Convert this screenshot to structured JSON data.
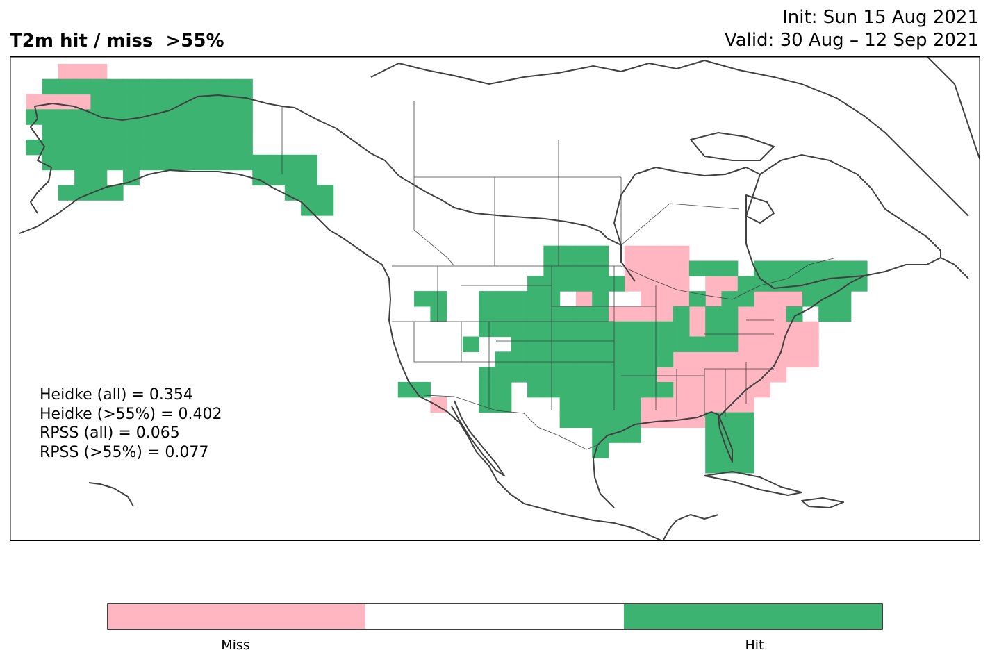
{
  "header": {
    "title": "T2m hit / miss  >55%",
    "init": "Init: Sun 15 Aug 2021",
    "valid": "Valid: 30 Aug – 12 Sep 2021"
  },
  "stats": [
    "Heidke (all) = 0.354",
    "Heidke (>55%) = 0.402",
    "RPSS (all) = 0.065",
    "RPSS (>55%) = 0.077"
  ],
  "legend": {
    "categories": [
      "Miss",
      "",
      "Hit"
    ],
    "colors": {
      "miss": "#ffb6c1",
      "neutral": "#ffffff",
      "hit": "#3cb371"
    }
  },
  "map": {
    "projection": "PlateCarree",
    "lon_range": [
      -171,
      -51
    ],
    "lat_range": [
      10,
      74
    ],
    "grid_deg": 2,
    "hit_cells": [
      [
        -166,
        70
      ],
      [
        -164,
        70
      ],
      [
        -162,
        70
      ],
      [
        -160,
        70
      ],
      [
        -158,
        70
      ],
      [
        -156,
        70
      ],
      [
        -154,
        70
      ],
      [
        -152,
        70
      ],
      [
        -150,
        70
      ],
      [
        -148,
        70
      ],
      [
        -146,
        70
      ],
      [
        -144,
        70
      ],
      [
        -142,
        70
      ],
      [
        -160,
        68
      ],
      [
        -158,
        68
      ],
      [
        -156,
        68
      ],
      [
        -154,
        68
      ],
      [
        -152,
        68
      ],
      [
        -150,
        68
      ],
      [
        -148,
        68
      ],
      [
        -146,
        68
      ],
      [
        -144,
        68
      ],
      [
        -142,
        68
      ],
      [
        -168,
        66
      ],
      [
        -166,
        66
      ],
      [
        -164,
        66
      ],
      [
        -162,
        66
      ],
      [
        -160,
        66
      ],
      [
        -158,
        66
      ],
      [
        -156,
        66
      ],
      [
        -154,
        66
      ],
      [
        -152,
        66
      ],
      [
        -150,
        66
      ],
      [
        -148,
        66
      ],
      [
        -146,
        66
      ],
      [
        -144,
        66
      ],
      [
        -142,
        66
      ],
      [
        -166,
        64
      ],
      [
        -164,
        64
      ],
      [
        -162,
        64
      ],
      [
        -160,
        64
      ],
      [
        -158,
        64
      ],
      [
        -156,
        64
      ],
      [
        -154,
        64
      ],
      [
        -152,
        64
      ],
      [
        -150,
        64
      ],
      [
        -148,
        64
      ],
      [
        -146,
        64
      ],
      [
        -144,
        64
      ],
      [
        -142,
        64
      ],
      [
        -168,
        62
      ],
      [
        -166,
        62
      ],
      [
        -164,
        62
      ],
      [
        -162,
        62
      ],
      [
        -160,
        62
      ],
      [
        -158,
        62
      ],
      [
        -156,
        62
      ],
      [
        -154,
        62
      ],
      [
        -152,
        62
      ],
      [
        -150,
        62
      ],
      [
        -148,
        62
      ],
      [
        -146,
        62
      ],
      [
        -144,
        62
      ],
      [
        -142,
        62
      ],
      [
        -166,
        60
      ],
      [
        -164,
        60
      ],
      [
        -162,
        60
      ],
      [
        -160,
        60
      ],
      [
        -158,
        60
      ],
      [
        -156,
        60
      ],
      [
        -154,
        60
      ],
      [
        -152,
        60
      ],
      [
        -150,
        60
      ],
      [
        -148,
        60
      ],
      [
        -146,
        60
      ],
      [
        -144,
        60
      ],
      [
        -142,
        60
      ],
      [
        -162,
        58
      ],
      [
        -160,
        58
      ],
      [
        -156,
        58
      ],
      [
        -164,
        56
      ],
      [
        -162,
        56
      ],
      [
        -160,
        56
      ],
      [
        -158,
        56
      ],
      [
        -140,
        60
      ],
      [
        -138,
        60
      ],
      [
        -136,
        60
      ],
      [
        -134,
        60
      ],
      [
        -140,
        58
      ],
      [
        -138,
        58
      ],
      [
        -136,
        58
      ],
      [
        -134,
        58
      ],
      [
        -136,
        56
      ],
      [
        -134,
        56
      ],
      [
        -132,
        56
      ],
      [
        -134,
        54
      ],
      [
        -132,
        54
      ],
      [
        -104,
        48
      ],
      [
        -102,
        48
      ],
      [
        -100,
        48
      ],
      [
        -98,
        48
      ],
      [
        -104,
        46
      ],
      [
        -102,
        46
      ],
      [
        -100,
        46
      ],
      [
        -98,
        46
      ],
      [
        -86,
        46
      ],
      [
        -84,
        46
      ],
      [
        -82,
        46
      ],
      [
        -106,
        44
      ],
      [
        -104,
        44
      ],
      [
        -102,
        44
      ],
      [
        -100,
        44
      ],
      [
        -98,
        44
      ],
      [
        -96,
        44
      ],
      [
        -112,
        42
      ],
      [
        -110,
        42
      ],
      [
        -108,
        42
      ],
      [
        -106,
        42
      ],
      [
        -104,
        42
      ],
      [
        -98,
        42
      ],
      [
        -112,
        40
      ],
      [
        -110,
        40
      ],
      [
        -108,
        40
      ],
      [
        -106,
        40
      ],
      [
        -104,
        40
      ],
      [
        -102,
        40
      ],
      [
        -100,
        40
      ],
      [
        -98,
        40
      ],
      [
        -112,
        38
      ],
      [
        -110,
        38
      ],
      [
        -108,
        38
      ],
      [
        -106,
        38
      ],
      [
        -104,
        38
      ],
      [
        -102,
        38
      ],
      [
        -100,
        38
      ],
      [
        -98,
        38
      ],
      [
        -96,
        38
      ],
      [
        -94,
        38
      ],
      [
        -92,
        38
      ],
      [
        -90,
        38
      ],
      [
        -114,
        36
      ],
      [
        -108,
        36
      ],
      [
        -106,
        36
      ],
      [
        -104,
        36
      ],
      [
        -102,
        36
      ],
      [
        -100,
        36
      ],
      [
        -98,
        36
      ],
      [
        -96,
        36
      ],
      [
        -94,
        36
      ],
      [
        -92,
        36
      ],
      [
        -90,
        36
      ],
      [
        -110,
        34
      ],
      [
        -108,
        34
      ],
      [
        -106,
        34
      ],
      [
        -104,
        34
      ],
      [
        -102,
        34
      ],
      [
        -100,
        34
      ],
      [
        -98,
        34
      ],
      [
        -96,
        34
      ],
      [
        -94,
        34
      ],
      [
        -92,
        34
      ],
      [
        -90,
        34
      ],
      [
        -112,
        32
      ],
      [
        -110,
        32
      ],
      [
        -108,
        32
      ],
      [
        -106,
        32
      ],
      [
        -104,
        32
      ],
      [
        -102,
        32
      ],
      [
        -100,
        32
      ],
      [
        -98,
        32
      ],
      [
        -96,
        32
      ],
      [
        -94,
        32
      ],
      [
        -92,
        32
      ],
      [
        -112,
        30
      ],
      [
        -110,
        30
      ],
      [
        -106,
        30
      ],
      [
        -104,
        30
      ],
      [
        -102,
        30
      ],
      [
        -100,
        30
      ],
      [
        -98,
        30
      ],
      [
        -96,
        30
      ],
      [
        -94,
        30
      ],
      [
        -92,
        30
      ],
      [
        -90,
        30
      ],
      [
        -112,
        28
      ],
      [
        -110,
        28
      ],
      [
        -102,
        28
      ],
      [
        -100,
        28
      ],
      [
        -98,
        28
      ],
      [
        -96,
        28
      ],
      [
        -94,
        28
      ],
      [
        -102,
        26
      ],
      [
        -100,
        26
      ],
      [
        -98,
        26
      ],
      [
        -96,
        26
      ],
      [
        -94,
        26
      ],
      [
        -84,
        26
      ],
      [
        -82,
        26
      ],
      [
        -80,
        26
      ],
      [
        -98,
        24
      ],
      [
        -96,
        24
      ],
      [
        -94,
        24
      ],
      [
        -84,
        24
      ],
      [
        -82,
        24
      ],
      [
        -80,
        24
      ],
      [
        -98,
        22
      ],
      [
        -84,
        22
      ],
      [
        -82,
        22
      ],
      [
        -80,
        22
      ],
      [
        -84,
        20
      ],
      [
        -82,
        20
      ],
      [
        -80,
        20
      ],
      [
        -120,
        42
      ],
      [
        -118,
        42
      ],
      [
        -118,
        40
      ],
      [
        -122,
        30
      ],
      [
        -120,
        30
      ],
      [
        -78,
        46
      ],
      [
        -76,
        46
      ],
      [
        -74,
        46
      ],
      [
        -72,
        46
      ],
      [
        -70,
        46
      ],
      [
        -68,
        46
      ],
      [
        -66,
        46
      ],
      [
        -80,
        44
      ],
      [
        -78,
        44
      ],
      [
        -76,
        44
      ],
      [
        -74,
        44
      ],
      [
        -72,
        44
      ],
      [
        -70,
        44
      ],
      [
        -68,
        44
      ],
      [
        -66,
        44
      ],
      [
        -86,
        42
      ],
      [
        -82,
        42
      ],
      [
        -80,
        42
      ],
      [
        -72,
        42
      ],
      [
        -70,
        42
      ],
      [
        -68,
        42
      ],
      [
        -88,
        40
      ],
      [
        -84,
        40
      ],
      [
        -82,
        40
      ],
      [
        -74,
        40
      ],
      [
        -70,
        40
      ],
      [
        -68,
        40
      ],
      [
        -88,
        38
      ],
      [
        -84,
        38
      ],
      [
        -82,
        38
      ],
      [
        -88,
        36
      ],
      [
        -86,
        36
      ],
      [
        -84,
        36
      ],
      [
        -82,
        36
      ]
    ],
    "miss_cells": [
      [
        -164,
        72
      ],
      [
        -162,
        72
      ],
      [
        -160,
        72
      ],
      [
        -166,
        70
      ],
      [
        -164,
        70
      ],
      [
        -162,
        70
      ],
      [
        -168,
        68
      ],
      [
        -166,
        68
      ],
      [
        -164,
        68
      ],
      [
        -162,
        68
      ],
      [
        -156,
        58
      ],
      [
        -94,
        48
      ],
      [
        -92,
        48
      ],
      [
        -90,
        48
      ],
      [
        -88,
        48
      ],
      [
        -94,
        46
      ],
      [
        -92,
        46
      ],
      [
        -90,
        46
      ],
      [
        -88,
        46
      ],
      [
        -94,
        44
      ],
      [
        -92,
        44
      ],
      [
        -90,
        44
      ],
      [
        -88,
        44
      ],
      [
        -84,
        44
      ],
      [
        -82,
        44
      ],
      [
        -80,
        44
      ],
      [
        -100,
        42
      ],
      [
        -92,
        42
      ],
      [
        -90,
        42
      ],
      [
        -88,
        42
      ],
      [
        -86,
        42
      ],
      [
        -84,
        42
      ],
      [
        -82,
        42
      ],
      [
        -80,
        42
      ],
      [
        -78,
        42
      ],
      [
        -76,
        42
      ],
      [
        -74,
        42
      ],
      [
        -96,
        40
      ],
      [
        -94,
        40
      ],
      [
        -92,
        40
      ],
      [
        -90,
        40
      ],
      [
        -86,
        40
      ],
      [
        -80,
        40
      ],
      [
        -78,
        40
      ],
      [
        -76,
        40
      ],
      [
        -86,
        38
      ],
      [
        -80,
        38
      ],
      [
        -78,
        38
      ],
      [
        -76,
        38
      ],
      [
        -74,
        38
      ],
      [
        -72,
        38
      ],
      [
        -82,
        36
      ],
      [
        -80,
        36
      ],
      [
        -78,
        36
      ],
      [
        -76,
        36
      ],
      [
        -74,
        36
      ],
      [
        -72,
        36
      ],
      [
        -88,
        34
      ],
      [
        -86,
        34
      ],
      [
        -84,
        34
      ],
      [
        -82,
        34
      ],
      [
        -80,
        34
      ],
      [
        -78,
        34
      ],
      [
        -76,
        34
      ],
      [
        -74,
        34
      ],
      [
        -72,
        34
      ],
      [
        -90,
        32
      ],
      [
        -88,
        32
      ],
      [
        -86,
        32
      ],
      [
        -84,
        32
      ],
      [
        -82,
        32
      ],
      [
        -80,
        32
      ],
      [
        -78,
        32
      ],
      [
        -76,
        32
      ],
      [
        -92,
        30
      ],
      [
        -90,
        30
      ],
      [
        -88,
        30
      ],
      [
        -86,
        30
      ],
      [
        -84,
        30
      ],
      [
        -82,
        30
      ],
      [
        -80,
        30
      ],
      [
        -78,
        30
      ],
      [
        -92,
        28
      ],
      [
        -90,
        28
      ],
      [
        -88,
        28
      ],
      [
        -86,
        28
      ],
      [
        -84,
        28
      ],
      [
        -82,
        28
      ],
      [
        -80,
        28
      ],
      [
        -92,
        26
      ],
      [
        -90,
        26
      ],
      [
        -88,
        26
      ],
      [
        -86,
        26
      ],
      [
        -84,
        26
      ],
      [
        -118,
        28
      ]
    ]
  }
}
